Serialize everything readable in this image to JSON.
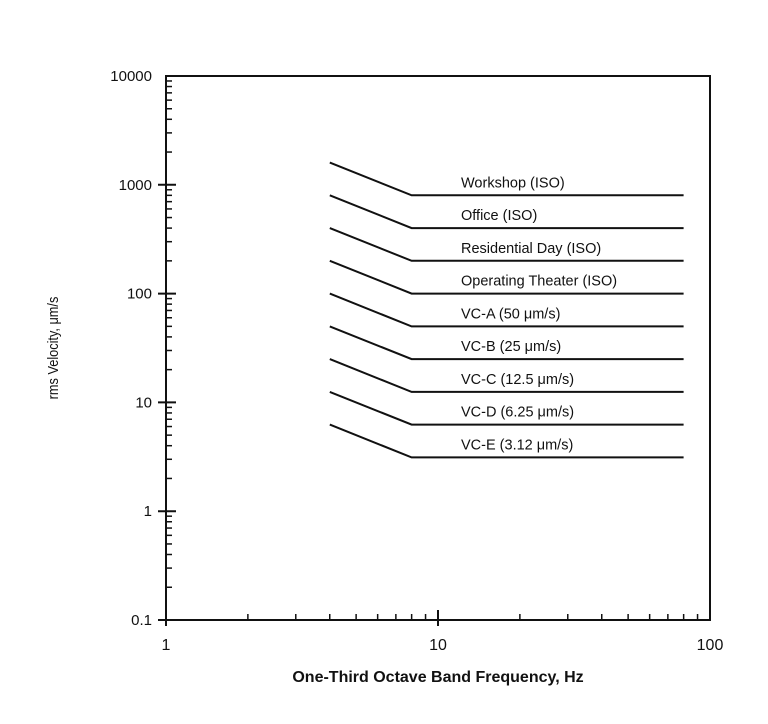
{
  "chart_data": {
    "type": "line",
    "title": "",
    "xlabel": "One-Third Octave Band Frequency, Hz",
    "ylabel": "rms Velocity, μm/s",
    "xscale": "log",
    "yscale": "log",
    "xlim": [
      1,
      100
    ],
    "ylim": [
      0.1,
      10000
    ],
    "x_ticks": [
      {
        "value": 1,
        "label": "1"
      },
      {
        "value": 10,
        "label": "10"
      },
      {
        "value": 100,
        "label": "100"
      }
    ],
    "y_ticks": [
      {
        "value": 0.1,
        "label": "0.1"
      },
      {
        "value": 1,
        "label": "1"
      },
      {
        "value": 10,
        "label": "10"
      },
      {
        "value": 100,
        "label": "100"
      },
      {
        "value": 1000,
        "label": "1000"
      },
      {
        "value": 10000,
        "label": "10000"
      }
    ],
    "grid": false,
    "legend": "inline labels to the right of curves",
    "x": [
      4,
      8,
      80
    ],
    "series": [
      {
        "name": "Workshop (ISO)",
        "values": [
          1600,
          800,
          800
        ]
      },
      {
        "name": "Office (ISO)",
        "values": [
          800,
          400,
          400
        ]
      },
      {
        "name": "Residential Day (ISO)",
        "values": [
          400,
          200,
          200
        ]
      },
      {
        "name": "Operating Theater (ISO)",
        "values": [
          200,
          100,
          100
        ]
      },
      {
        "name": "VC-A (50 μm/s)",
        "values": [
          100,
          50,
          50
        ]
      },
      {
        "name": "VC-B (25 μm/s)",
        "values": [
          50,
          25,
          25
        ]
      },
      {
        "name": "VC-C (12.5 μm/s)",
        "values": [
          25,
          12.5,
          12.5
        ]
      },
      {
        "name": "VC-D (6.25 μm/s)",
        "values": [
          12.5,
          6.25,
          6.25
        ]
      },
      {
        "name": "VC-E (3.12 μm/s)",
        "values": [
          6.25,
          3.12,
          3.12
        ]
      }
    ]
  }
}
